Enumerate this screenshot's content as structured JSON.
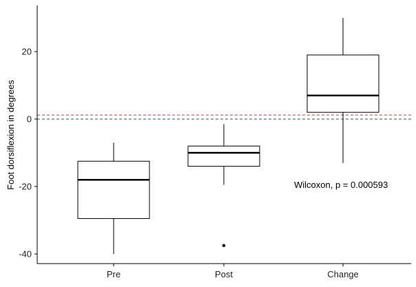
{
  "chart_data": {
    "type": "boxplot",
    "title": "",
    "xlabel": "",
    "ylabel": "Foot dorsiflexion in degrees",
    "ylim": [
      -42,
      33
    ],
    "yticks": [
      -40,
      -20,
      0,
      20
    ],
    "grid": false,
    "categories": [
      "Pre",
      "Post",
      "Change"
    ],
    "boxes": [
      {
        "category": "Pre",
        "min": -40,
        "q1": -29.5,
        "median": -18,
        "q3": -12.5,
        "max": -7,
        "outliers": []
      },
      {
        "category": "Post",
        "min": -19.5,
        "q1": -14,
        "median": -10,
        "q3": -8,
        "max": -1.5,
        "outliers": [
          -37.5
        ]
      },
      {
        "category": "Change",
        "min": -13,
        "q1": 2,
        "median": 7,
        "q3": 19,
        "max": 30,
        "outliers": []
      }
    ],
    "reference_lines": [
      {
        "y": 1.2,
        "color": "#e0312f",
        "style": "dashed"
      },
      {
        "y": 0,
        "color": "#2e5e4e",
        "style": "dashed"
      }
    ],
    "annotation": "Wilcoxon, p = 0.000593"
  }
}
